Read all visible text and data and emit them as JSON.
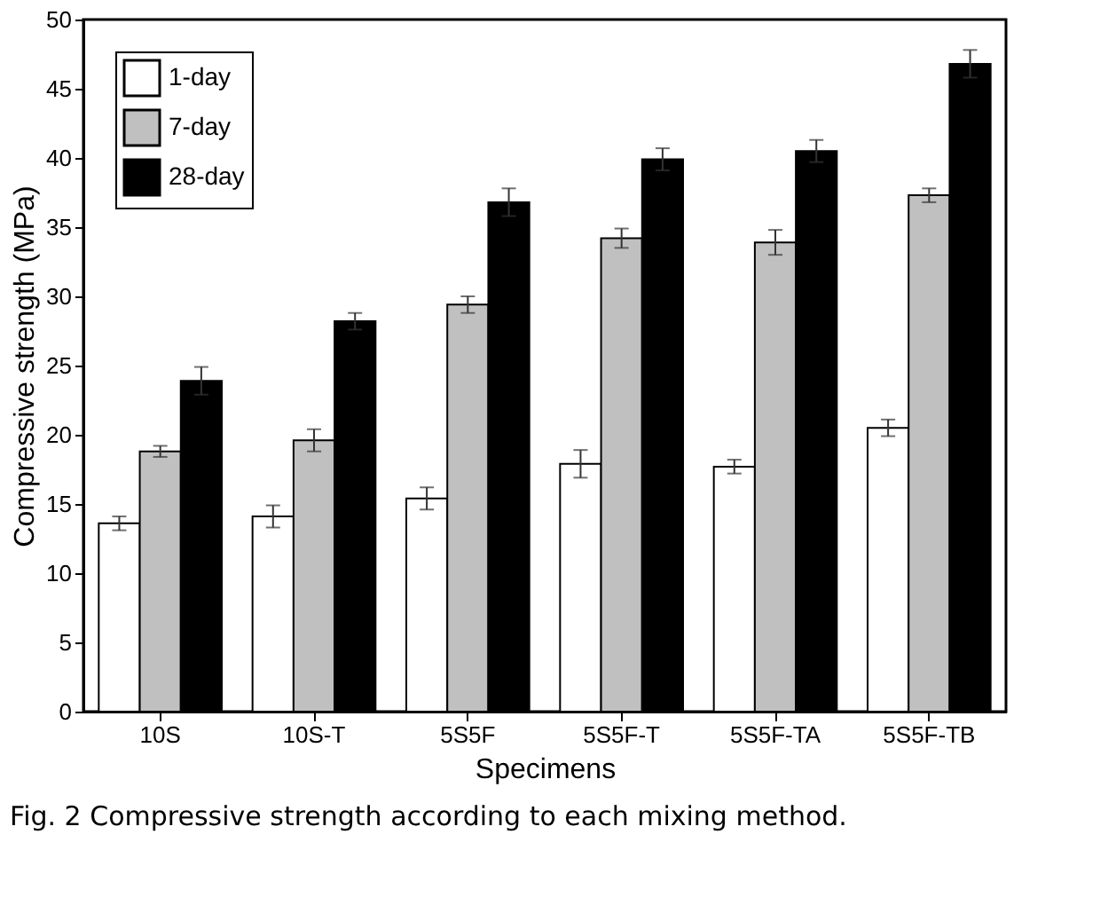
{
  "chart_data": {
    "type": "bar",
    "xlabel": "Specimens",
    "ylabel": "Compressive strength (MPa)",
    "categories": [
      "10S",
      "10S-T",
      "5S5F",
      "5S5F-T",
      "5S5F-TA",
      "5S5F-TB"
    ],
    "series": [
      {
        "name": "1-day",
        "color": "#ffffff",
        "values": [
          13.6,
          14.1,
          15.4,
          17.9,
          17.7,
          20.5
        ],
        "errors": [
          0.5,
          0.8,
          0.8,
          1.0,
          0.5,
          0.6
        ]
      },
      {
        "name": "7-day",
        "color": "#c0c0c0",
        "values": [
          18.8,
          19.6,
          29.4,
          34.2,
          33.9,
          37.3
        ],
        "errors": [
          0.4,
          0.8,
          0.6,
          0.7,
          0.9,
          0.5
        ]
      },
      {
        "name": "28-day",
        "color": "#000000",
        "values": [
          23.9,
          28.2,
          36.8,
          39.9,
          40.5,
          46.8
        ],
        "errors": [
          1.0,
          0.6,
          1.0,
          0.8,
          0.8,
          1.0
        ]
      }
    ],
    "ylim": [
      0,
      50
    ],
    "yticks": [
      0,
      5,
      10,
      15,
      20,
      25,
      30,
      35,
      40,
      45,
      50
    ],
    "grid": false,
    "legend": "top left",
    "annotations": [
      "Fig. 2  Compressive strength according to each mixing method."
    ]
  }
}
